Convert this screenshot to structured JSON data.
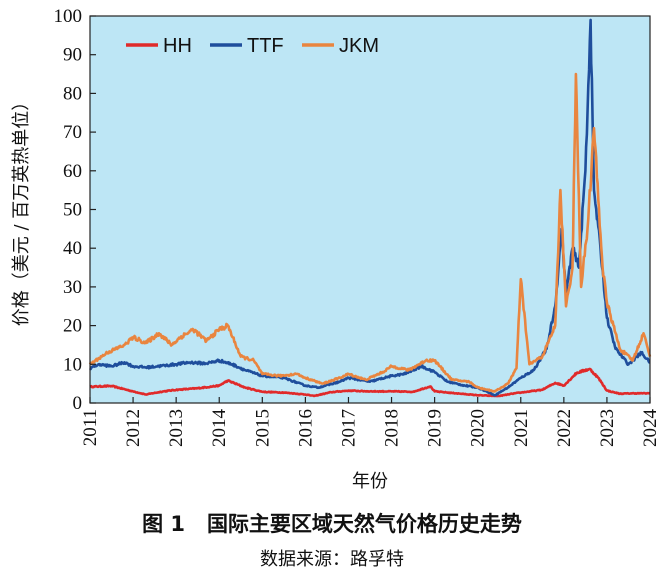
{
  "chart_data": {
    "type": "line",
    "figure_label": "图 1",
    "title": "国际主要区域天然气价格历史走势",
    "source": "数据来源：路孚特",
    "xlabel": "年份",
    "ylabel": "价格（美元 / 百万英热单位）",
    "xlim": [
      2011,
      2024
    ],
    "ylim": [
      0,
      100
    ],
    "x_ticks": [
      "2011",
      "2012",
      "2013",
      "2014",
      "2015",
      "2016",
      "2017",
      "2018",
      "2019",
      "2020",
      "2021",
      "2022",
      "2023",
      "2024"
    ],
    "y_ticks": [
      "0",
      "10",
      "20",
      "30",
      "40",
      "50",
      "60",
      "70",
      "80",
      "90",
      "100"
    ],
    "legend_position": "top-left",
    "colors": {
      "background": "#bde6f5",
      "HH": "#e02a2a",
      "TTF": "#1f4e9c",
      "JKM": "#e9853f"
    },
    "series": [
      {
        "name": "HH",
        "color": "#e02a2a",
        "x": [
          2011.0,
          2011.5,
          2012.0,
          2012.3,
          2012.7,
          2013.0,
          2013.5,
          2014.0,
          2014.2,
          2014.6,
          2015.0,
          2015.5,
          2016.0,
          2016.2,
          2016.6,
          2017.0,
          2017.5,
          2018.0,
          2018.5,
          2018.9,
          2019.0,
          2019.5,
          2020.0,
          2020.5,
          2020.8,
          2021.0,
          2021.5,
          2021.8,
          2022.0,
          2022.3,
          2022.6,
          2022.8,
          2023.0,
          2023.3,
          2023.6,
          2024.0
        ],
        "values": [
          4.2,
          4.4,
          3.0,
          2.2,
          3.0,
          3.4,
          3.8,
          4.5,
          5.8,
          4.0,
          2.9,
          2.7,
          2.2,
          1.8,
          2.8,
          3.2,
          3.0,
          3.0,
          2.9,
          4.3,
          3.0,
          2.5,
          2.0,
          1.8,
          2.4,
          2.7,
          3.4,
          5.2,
          4.5,
          7.8,
          8.8,
          6.5,
          3.2,
          2.4,
          2.5,
          2.5
        ]
      },
      {
        "name": "TTF",
        "color": "#1f4e9c",
        "x": [
          2011.0,
          2011.2,
          2011.5,
          2011.8,
          2012.0,
          2012.3,
          2012.6,
          2013.0,
          2013.3,
          2013.7,
          2014.0,
          2014.3,
          2014.6,
          2015.0,
          2015.5,
          2016.0,
          2016.3,
          2016.8,
          2017.0,
          2017.5,
          2018.0,
          2018.3,
          2018.7,
          2019.0,
          2019.3,
          2019.7,
          2020.0,
          2020.4,
          2020.7,
          2021.0,
          2021.3,
          2021.6,
          2021.8,
          2021.95,
          2022.05,
          2022.2,
          2022.35,
          2022.5,
          2022.62,
          2022.7,
          2022.85,
          2023.0,
          2023.2,
          2023.5,
          2023.8,
          2024.0
        ],
        "values": [
          9.0,
          10.0,
          9.5,
          10.5,
          9.5,
          9.2,
          9.5,
          10.0,
          10.5,
          10.2,
          11.0,
          10.0,
          8.5,
          7.0,
          6.5,
          4.5,
          4.0,
          5.5,
          6.5,
          5.5,
          7.0,
          7.5,
          9.5,
          8.0,
          5.5,
          4.5,
          4.0,
          2.0,
          4.0,
          6.5,
          8.5,
          14.0,
          25.0,
          45.0,
          28.0,
          40.0,
          35.0,
          60.0,
          99.0,
          55.0,
          40.0,
          22.0,
          14.0,
          10.0,
          13.0,
          10.5
        ]
      },
      {
        "name": "JKM",
        "color": "#e9853f",
        "x": [
          2011.0,
          2011.4,
          2011.8,
          2012.0,
          2012.3,
          2012.6,
          2012.9,
          2013.1,
          2013.4,
          2013.7,
          2014.0,
          2014.2,
          2014.5,
          2014.8,
          2015.0,
          2015.4,
          2015.8,
          2016.0,
          2016.4,
          2016.8,
          2017.0,
          2017.4,
          2017.8,
          2018.0,
          2018.4,
          2018.8,
          2019.0,
          2019.4,
          2019.8,
          2020.0,
          2020.4,
          2020.7,
          2020.9,
          2021.0,
          2021.2,
          2021.5,
          2021.8,
          2021.92,
          2022.05,
          2022.2,
          2022.28,
          2022.4,
          2022.55,
          2022.7,
          2022.9,
          2023.0,
          2023.3,
          2023.6,
          2023.85,
          2024.0
        ],
        "values": [
          10.0,
          13.0,
          15.0,
          17.0,
          15.5,
          18.0,
          15.0,
          17.0,
          19.0,
          16.0,
          19.0,
          20.0,
          12.0,
          11.0,
          7.5,
          7.0,
          7.5,
          6.5,
          5.0,
          6.5,
          7.5,
          6.0,
          8.0,
          9.5,
          8.5,
          11.0,
          11.0,
          6.0,
          5.5,
          4.0,
          3.0,
          5.0,
          9.0,
          32.0,
          10.0,
          12.0,
          20.0,
          55.0,
          25.0,
          35.0,
          85.0,
          30.0,
          45.0,
          71.0,
          35.0,
          26.0,
          14.0,
          11.0,
          18.0,
          12.0
        ]
      }
    ]
  }
}
